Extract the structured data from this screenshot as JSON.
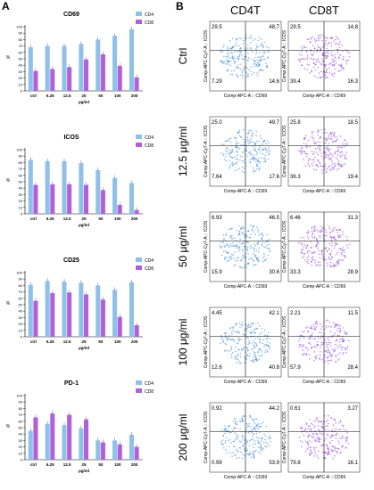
{
  "panel_labels": {
    "a": "A",
    "b": "B"
  },
  "colors": {
    "cd4": "#8ec0ea",
    "cd8": "#b060d8",
    "cd4_dot": "#2a7ed0",
    "cd8_dot": "#8a2be0"
  },
  "flow": {
    "col_titles": [
      "CD4T",
      "CD8T"
    ],
    "row_labels": [
      "Ctrl",
      "12.5 μg/ml",
      "50 μg/ml",
      "100 μg/ml",
      "200 μg/ml"
    ],
    "ylabel": "Comp-APC-Cy7-A :: ICOS",
    "xlabel": "Comp-APC-A :: CD69",
    "quadrants": [
      {
        "cd4": [
          "29.5",
          "48.7",
          "7.29",
          "14.6"
        ],
        "cd8": [
          "29.5",
          "14.8",
          "39.4",
          "16.3"
        ]
      },
      {
        "cd4": [
          "25.0",
          "49.7",
          "7.64",
          "17.6"
        ],
        "cd8": [
          "25.8",
          "18.5",
          "36.3",
          "19.4"
        ]
      },
      {
        "cd4": [
          "6.93",
          "46.5",
          "15.9",
          "30.6"
        ],
        "cd8": [
          "6.46",
          "31.3",
          "33.3",
          "28.9"
        ]
      },
      {
        "cd4": [
          "4.45",
          "42.1",
          "12.6",
          "40.8"
        ],
        "cd8": [
          "2.21",
          "11.5",
          "57.9",
          "28.4"
        ]
      },
      {
        "cd4": [
          "0.92",
          "44.2",
          "0.99",
          "53.9"
        ],
        "cd8": [
          "0.61",
          "3.27",
          "79.8",
          "16.1"
        ]
      }
    ]
  },
  "chart_data": [
    {
      "type": "bar",
      "title": "CD69",
      "categories": [
        "ctrl",
        "6.25",
        "12.5",
        "25",
        "50",
        "100",
        "200"
      ],
      "series": [
        {
          "name": "CD4",
          "values": [
            68,
            70,
            70,
            73,
            80,
            86,
            96
          ]
        },
        {
          "name": "CD8",
          "values": [
            31,
            34,
            37,
            49,
            57,
            39,
            21
          ]
        }
      ],
      "xlabel": "μg/ml",
      "ylabel": "%",
      "ylim": [
        0,
        100
      ],
      "yticks": [
        "0",
        "10",
        "20",
        "30",
        "40",
        "50",
        "60",
        "70",
        "80",
        "90",
        "100"
      ],
      "legend": "top-right"
    },
    {
      "type": "bar",
      "title": "ICOS",
      "categories": [
        "ctrl",
        "6.25",
        "12.5",
        "25",
        "50",
        "100",
        "200"
      ],
      "series": [
        {
          "name": "CD4",
          "values": [
            84,
            82,
            82,
            79,
            68,
            56,
            48
          ]
        },
        {
          "name": "CD8",
          "values": [
            45,
            46,
            46,
            45,
            37,
            14,
            6
          ]
        }
      ],
      "xlabel": "μg/ml",
      "ylabel": "%",
      "ylim": [
        0,
        100
      ],
      "yticks": [
        "0",
        "10",
        "20",
        "30",
        "40",
        "50",
        "60",
        "70",
        "80",
        "90",
        "100"
      ],
      "legend": "top-right"
    },
    {
      "type": "bar",
      "title": "CD25",
      "categories": [
        "ctrl",
        "6.25",
        "12.5",
        "25",
        "50",
        "100",
        "200"
      ],
      "series": [
        {
          "name": "CD4",
          "values": [
            81,
            87,
            86,
            84,
            80,
            73,
            85
          ]
        },
        {
          "name": "CD8",
          "values": [
            56,
            68,
            69,
            66,
            58,
            31,
            18
          ]
        }
      ],
      "xlabel": "μg/ml",
      "ylabel": "%",
      "ylim": [
        0,
        100
      ],
      "yticks": [
        "0",
        "10",
        "20",
        "30",
        "40",
        "50",
        "60",
        "70",
        "80",
        "90",
        "100"
      ],
      "legend": "top-right"
    },
    {
      "type": "bar",
      "title": "PD-1",
      "categories": [
        "ctrl",
        "6.25",
        "12.5",
        "25",
        "50",
        "100",
        "200"
      ],
      "series": [
        {
          "name": "CD4",
          "values": [
            45,
            56,
            54,
            49,
            30,
            30,
            39
          ]
        },
        {
          "name": "CD8",
          "values": [
            66,
            72,
            70,
            63,
            27,
            24,
            20
          ]
        }
      ],
      "xlabel": "μg/ml",
      "ylabel": "%",
      "ylim": [
        0,
        100
      ],
      "yticks": [
        "0",
        "10",
        "20",
        "30",
        "40",
        "50",
        "60",
        "70",
        "80",
        "90",
        "100"
      ],
      "legend": "top-right"
    }
  ]
}
